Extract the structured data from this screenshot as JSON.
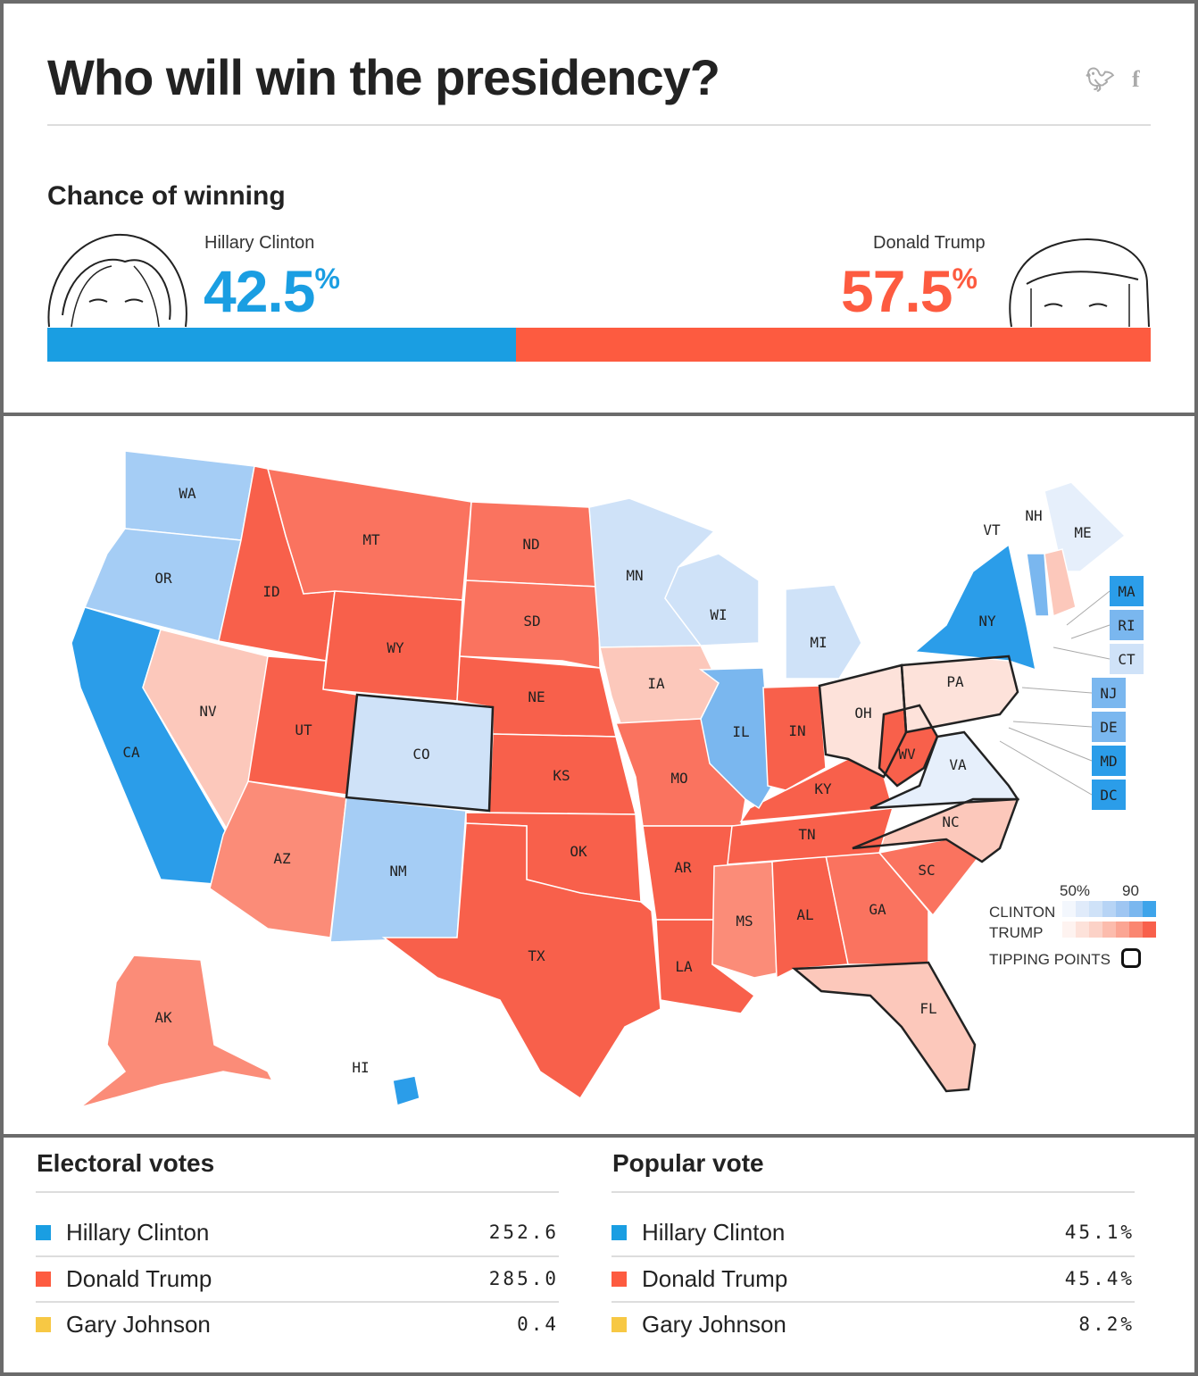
{
  "header": {
    "title": "Who will win the presidency?",
    "twitter_icon": "twitter-icon",
    "facebook_icon": "facebook-icon"
  },
  "chance": {
    "heading": "Chance of winning",
    "clinton": {
      "name": "Hillary Clinton",
      "value": "42.5",
      "unit": "%",
      "fraction": 0.425,
      "color": "#1a9ee2"
    },
    "trump": {
      "name": "Donald Trump",
      "value": "57.5",
      "unit": "%",
      "fraction": 0.575,
      "color": "#fd5b40"
    }
  },
  "map": {
    "shades": {
      "c4": "#2b9de9",
      "c3": "#7ab7ef",
      "c2": "#a5cdf5",
      "c1": "#cfe2f8",
      "c0": "#e6effb",
      "t0": "#fde2da",
      "t1": "#fcc8bb",
      "t2": "#fb8c78",
      "t3": "#fa735f",
      "t4": "#f8604b"
    },
    "states": [
      {
        "id": "WA",
        "shade": "c2"
      },
      {
        "id": "OR",
        "shade": "c2"
      },
      {
        "id": "CA",
        "shade": "c4"
      },
      {
        "id": "NV",
        "shade": "t1"
      },
      {
        "id": "ID",
        "shade": "t4"
      },
      {
        "id": "MT",
        "shade": "t3"
      },
      {
        "id": "WY",
        "shade": "t4"
      },
      {
        "id": "UT",
        "shade": "t4"
      },
      {
        "id": "CO",
        "shade": "c1",
        "tipping": true
      },
      {
        "id": "AZ",
        "shade": "t2"
      },
      {
        "id": "NM",
        "shade": "c2"
      },
      {
        "id": "ND",
        "shade": "t3"
      },
      {
        "id": "SD",
        "shade": "t3"
      },
      {
        "id": "NE",
        "shade": "t4"
      },
      {
        "id": "KS",
        "shade": "t4"
      },
      {
        "id": "OK",
        "shade": "t4"
      },
      {
        "id": "TX",
        "shade": "t4"
      },
      {
        "id": "MN",
        "shade": "c1"
      },
      {
        "id": "IA",
        "shade": "t1"
      },
      {
        "id": "MO",
        "shade": "t3"
      },
      {
        "id": "AR",
        "shade": "t4"
      },
      {
        "id": "LA",
        "shade": "t4"
      },
      {
        "id": "MS",
        "shade": "t2"
      },
      {
        "id": "AL",
        "shade": "t4"
      },
      {
        "id": "GA",
        "shade": "t3"
      },
      {
        "id": "FL",
        "shade": "t1",
        "tipping": true
      },
      {
        "id": "SC",
        "shade": "t3"
      },
      {
        "id": "NC",
        "shade": "t1",
        "tipping": true
      },
      {
        "id": "TN",
        "shade": "t4"
      },
      {
        "id": "KY",
        "shade": "t4"
      },
      {
        "id": "IL",
        "shade": "c3"
      },
      {
        "id": "IN",
        "shade": "t4"
      },
      {
        "id": "WI",
        "shade": "c1"
      },
      {
        "id": "MI",
        "shade": "c1"
      },
      {
        "id": "OH",
        "shade": "t0",
        "tipping": true
      },
      {
        "id": "WV",
        "shade": "t4",
        "tipping": true
      },
      {
        "id": "VA",
        "shade": "c0",
        "tipping": true
      },
      {
        "id": "PA",
        "shade": "t0",
        "tipping": true
      },
      {
        "id": "NY",
        "shade": "c4"
      },
      {
        "id": "ME",
        "shade": "c0"
      },
      {
        "id": "NH",
        "shade": "t1"
      },
      {
        "id": "VT",
        "shade": "c3"
      },
      {
        "id": "AK",
        "shade": "t2"
      },
      {
        "id": "HI",
        "shade": "c4"
      }
    ],
    "boxes": [
      {
        "id": "MA",
        "shade": "c4"
      },
      {
        "id": "RI",
        "shade": "c3"
      },
      {
        "id": "CT",
        "shade": "c1"
      },
      {
        "id": "NJ",
        "shade": "c3"
      },
      {
        "id": "DE",
        "shade": "c3"
      },
      {
        "id": "MD",
        "shade": "c4"
      },
      {
        "id": "DC",
        "shade": "c4"
      }
    ],
    "legend": {
      "scale_low": "50%",
      "scale_high": "90",
      "clinton": "CLINTON",
      "trump": "TRUMP",
      "tipping": "TIPPING POINTS"
    }
  },
  "electoral": {
    "heading": "Electoral votes",
    "rows": [
      {
        "name": "Hillary Clinton",
        "value": "252.6",
        "color": "#1a9ee2"
      },
      {
        "name": "Donald Trump",
        "value": "285.0",
        "color": "#fd5b40"
      },
      {
        "name": "Gary Johnson",
        "value": "0.4",
        "color": "#f7c844"
      }
    ]
  },
  "popular": {
    "heading": "Popular vote",
    "rows": [
      {
        "name": "Hillary Clinton",
        "value": "45.1%",
        "color": "#1a9ee2"
      },
      {
        "name": "Donald Trump",
        "value": "45.4%",
        "color": "#fd5b40"
      },
      {
        "name": "Gary Johnson",
        "value": "8.2%",
        "color": "#f7c844"
      }
    ]
  }
}
